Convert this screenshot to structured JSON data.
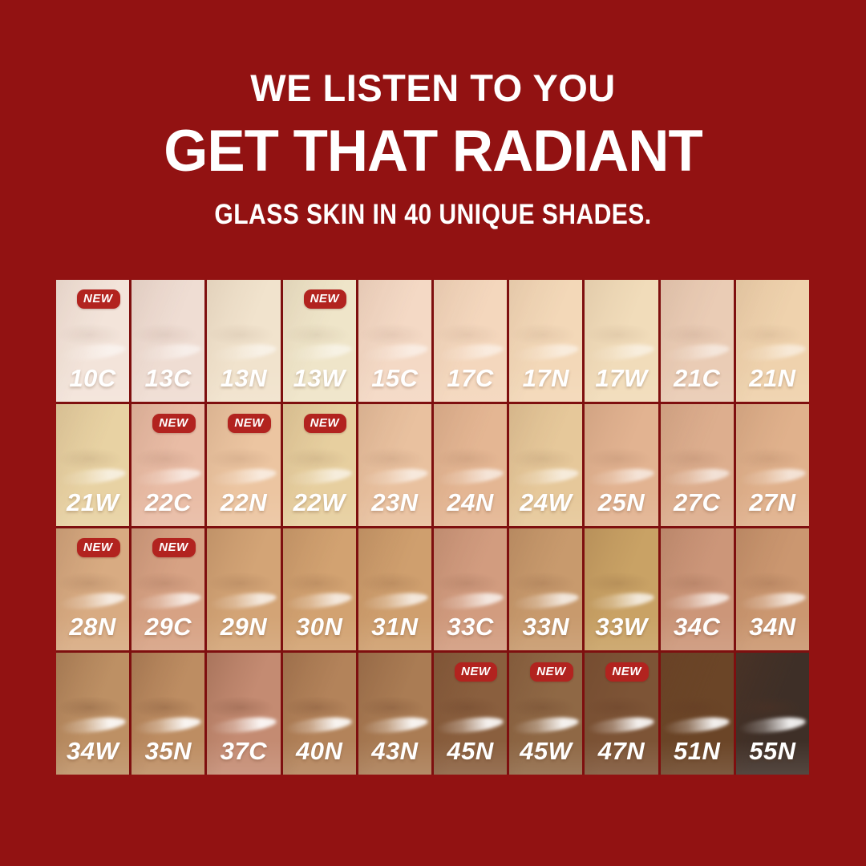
{
  "header": {
    "line1": "WE LISTEN TO YOU",
    "line2": "GET THAT RADIANT",
    "line3": "GLASS SKIN IN 40 UNIQUE SHADES."
  },
  "badge_label": "NEW",
  "colors": {
    "background": "#921212",
    "grid_gap": "#7e0f0f",
    "badge": "#b2231f",
    "badge_text": "#ffffff",
    "heading_text": "#ffffff",
    "shade_label": "#ffffff"
  },
  "grid": {
    "columns": 10,
    "rows": 4,
    "total_shades": 40
  },
  "shades": [
    {
      "code": "10C",
      "color": "#f3e4da",
      "new": true
    },
    {
      "code": "13C",
      "color": "#efddd3",
      "new": false
    },
    {
      "code": "13N",
      "color": "#f1e3cd",
      "new": false
    },
    {
      "code": "13W",
      "color": "#efe5c9",
      "new": true
    },
    {
      "code": "15C",
      "color": "#f4d9c5",
      "new": false
    },
    {
      "code": "17C",
      "color": "#f4d7bd",
      "new": false
    },
    {
      "code": "17N",
      "color": "#f3d8b8",
      "new": false
    },
    {
      "code": "17W",
      "color": "#f1dcba",
      "new": false
    },
    {
      "code": "21C",
      "color": "#eaccb5",
      "new": false
    },
    {
      "code": "21N",
      "color": "#efd2ad",
      "new": false
    },
    {
      "code": "21W",
      "color": "#e8d2a3",
      "new": false
    },
    {
      "code": "22C",
      "color": "#e9bca5",
      "new": true
    },
    {
      "code": "22N",
      "color": "#ecc5a1",
      "new": true
    },
    {
      "code": "22W",
      "color": "#e7cf9f",
      "new": true
    },
    {
      "code": "23N",
      "color": "#e9c19f",
      "new": false
    },
    {
      "code": "24N",
      "color": "#e4b693",
      "new": false
    },
    {
      "code": "24W",
      "color": "#e6c89a",
      "new": false
    },
    {
      "code": "25N",
      "color": "#e2b391",
      "new": false
    },
    {
      "code": "27C",
      "color": "#ddae8e",
      "new": false
    },
    {
      "code": "27N",
      "color": "#e0b18c",
      "new": false
    },
    {
      "code": "28N",
      "color": "#d8ab82",
      "new": true
    },
    {
      "code": "29C",
      "color": "#d7a284",
      "new": true
    },
    {
      "code": "29N",
      "color": "#d3a476",
      "new": false
    },
    {
      "code": "30N",
      "color": "#d2a271",
      "new": false
    },
    {
      "code": "31N",
      "color": "#cf9f6e",
      "new": false
    },
    {
      "code": "33C",
      "color": "#d29c7f",
      "new": false
    },
    {
      "code": "33N",
      "color": "#c89a6d",
      "new": false
    },
    {
      "code": "33W",
      "color": "#c9a265",
      "new": false
    },
    {
      "code": "34C",
      "color": "#cc9679",
      "new": false
    },
    {
      "code": "34N",
      "color": "#cb9770",
      "new": false
    },
    {
      "code": "34W",
      "color": "#bd9064",
      "new": false
    },
    {
      "code": "35N",
      "color": "#bd8d62",
      "new": false
    },
    {
      "code": "37C",
      "color": "#c48b72",
      "new": false
    },
    {
      "code": "40N",
      "color": "#b3835a",
      "new": false
    },
    {
      "code": "43N",
      "color": "#aa7c54",
      "new": false
    },
    {
      "code": "45N",
      "color": "#8a5f3e",
      "new": true
    },
    {
      "code": "45W",
      "color": "#8f6845",
      "new": true
    },
    {
      "code": "47N",
      "color": "#7d5436",
      "new": true
    },
    {
      "code": "51N",
      "color": "#6b4527",
      "new": false
    },
    {
      "code": "55N",
      "color": "#3e2f27",
      "new": false
    }
  ]
}
